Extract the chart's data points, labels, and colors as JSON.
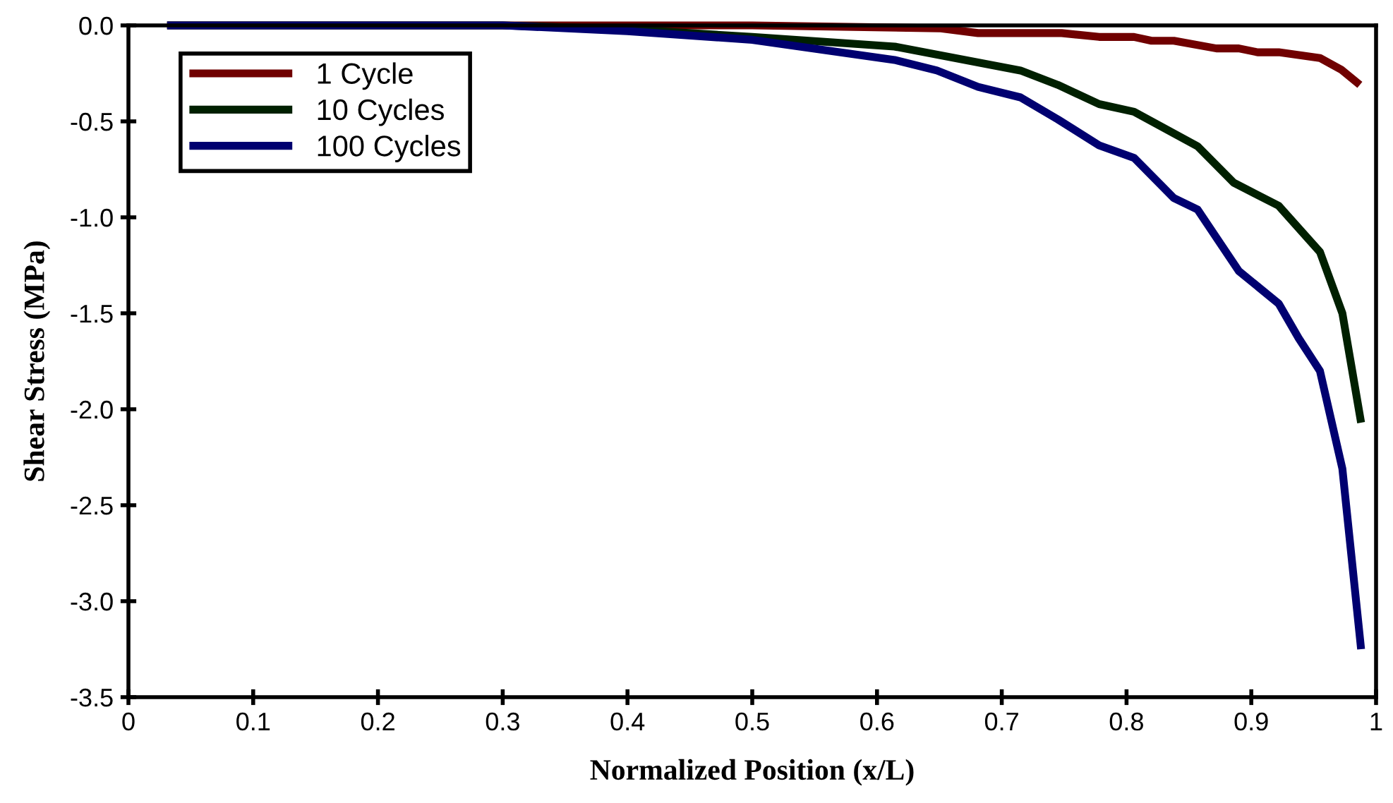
{
  "chart_data": {
    "type": "line",
    "xlabel": "Normalized Position (x/L)",
    "ylabel": "Shear Stress (MPa)",
    "xlim": [
      0,
      1
    ],
    "ylim": [
      -3.5,
      0
    ],
    "xticks": [
      0,
      0.1,
      0.2,
      0.3,
      0.4,
      0.5,
      0.6,
      0.7,
      0.8,
      0.9,
      1
    ],
    "yticks": [
      {
        "value": 0,
        "label": "0.0"
      },
      {
        "value": -0.5,
        "label": "-0.5"
      },
      {
        "value": -1,
        "label": "-1.0"
      },
      {
        "value": -1.5,
        "label": "-1.5"
      },
      {
        "value": -2,
        "label": "-2.0"
      },
      {
        "value": -2.5,
        "label": "-2.5"
      },
      {
        "value": -3,
        "label": "-3.0"
      },
      {
        "value": -3.5,
        "label": "-3.5"
      }
    ],
    "grid": false,
    "legend": "top left",
    "marker": "none",
    "line_style": "solid",
    "series": [
      {
        "name": "1 Cycle",
        "color": "#700000",
        "x": [
          0.031,
          0.3,
          0.5,
          0.65,
          0.681,
          0.748,
          0.778,
          0.806,
          0.82,
          0.838,
          0.872,
          0.89,
          0.905,
          0.922,
          0.955,
          0.972,
          0.987
        ],
        "values": [
          0,
          0,
          0,
          -0.015,
          -0.04,
          -0.04,
          -0.06,
          -0.06,
          -0.08,
          -0.08,
          -0.12,
          -0.12,
          -0.14,
          -0.14,
          -0.17,
          -0.23,
          -0.31
        ]
      },
      {
        "name": "10 Cycles",
        "color": "#002000",
        "x": [
          0.031,
          0.3,
          0.4,
          0.5,
          0.614,
          0.715,
          0.745,
          0.778,
          0.806,
          0.857,
          0.886,
          0.922,
          0.955,
          0.973,
          0.988
        ],
        "values": [
          0,
          0,
          -0.02,
          -0.06,
          -0.11,
          -0.235,
          -0.31,
          -0.41,
          -0.45,
          -0.63,
          -0.82,
          -0.94,
          -1.18,
          -1.5,
          -2.07
        ]
      },
      {
        "name": "100 Cycles",
        "color": "#000070",
        "x": [
          0.031,
          0.3,
          0.4,
          0.5,
          0.614,
          0.648,
          0.681,
          0.715,
          0.745,
          0.778,
          0.806,
          0.838,
          0.857,
          0.89,
          0.922,
          0.938,
          0.955,
          0.973,
          0.988
        ],
        "values": [
          0,
          0,
          -0.03,
          -0.075,
          -0.18,
          -0.235,
          -0.32,
          -0.375,
          -0.49,
          -0.625,
          -0.69,
          -0.9,
          -0.96,
          -1.28,
          -1.45,
          -1.63,
          -1.8,
          -2.31,
          -3.25
        ]
      }
    ]
  }
}
